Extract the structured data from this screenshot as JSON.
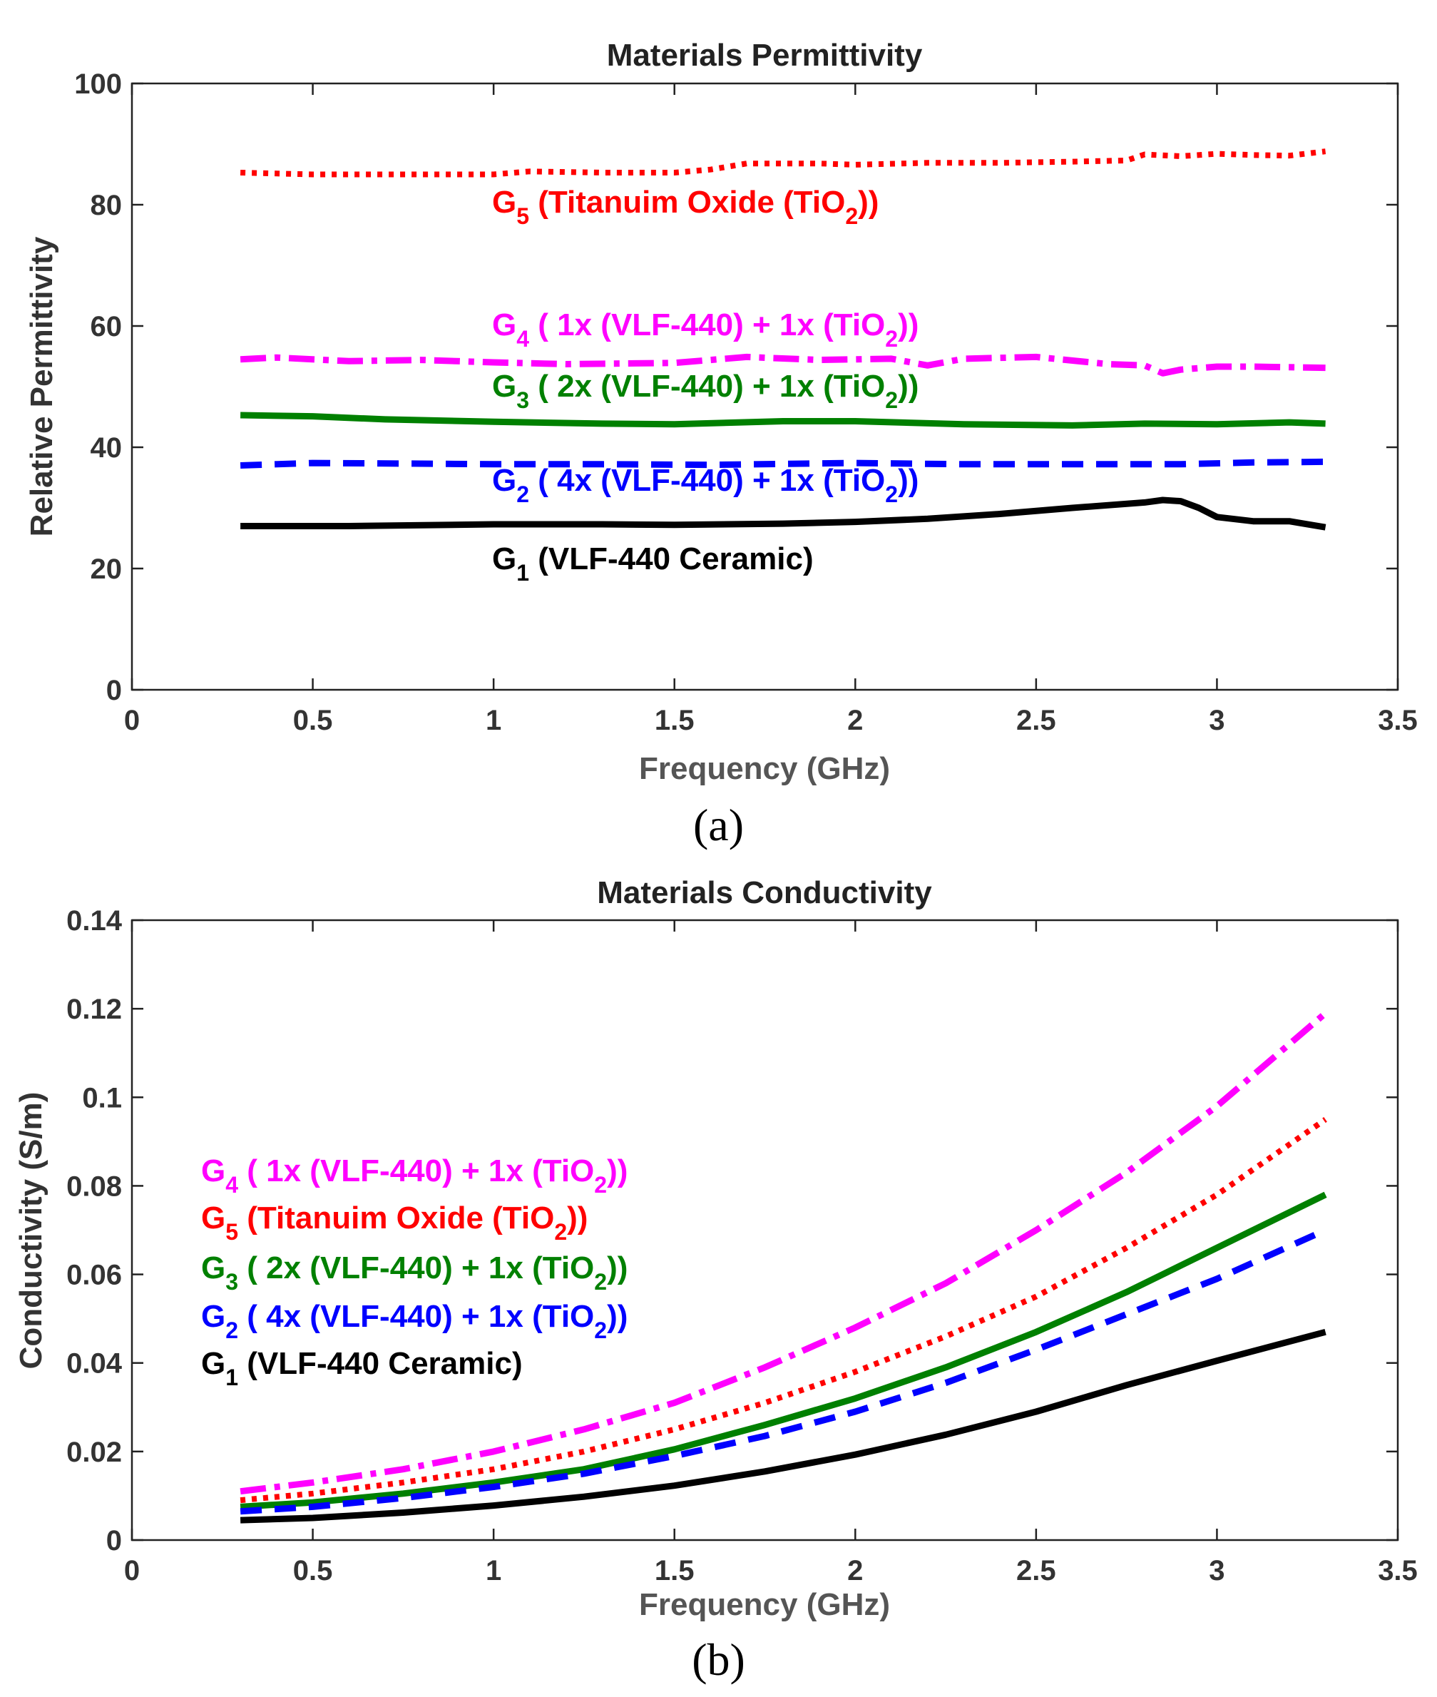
{
  "chart_data": [
    {
      "id": "a",
      "type": "line",
      "title": "Materials Permittivity",
      "xlabel": "Frequency (GHz)",
      "ylabel": "Relative Permittivity",
      "panel_label": "(a)",
      "xlim": [
        0,
        3.5
      ],
      "ylim": [
        0,
        100
      ],
      "xticks": [
        0,
        0.5,
        1,
        1.5,
        2,
        2.5,
        3,
        3.5
      ],
      "yticks": [
        0,
        20,
        40,
        60,
        80,
        100
      ],
      "grid": false,
      "series": [
        {
          "key": "G5",
          "color": "#ff0000",
          "style": "dotted",
          "label": {
            "sym": "G",
            "sub": "5",
            "text": " (Titanuim Oxide (TiO",
            "sub2": "2",
            "tail": "))"
          },
          "x": [
            0.3,
            0.5,
            0.75,
            1.0,
            1.1,
            1.3,
            1.5,
            1.6,
            1.7,
            1.9,
            2.0,
            2.2,
            2.4,
            2.6,
            2.75,
            2.8,
            2.9,
            3.0,
            3.1,
            3.2,
            3.3
          ],
          "y": [
            85.3,
            85.0,
            85.0,
            85.0,
            85.5,
            85.3,
            85.3,
            85.8,
            86.8,
            86.8,
            86.6,
            86.9,
            86.9,
            87.1,
            87.3,
            88.3,
            88.0,
            88.4,
            88.2,
            88.1,
            88.8
          ]
        },
        {
          "key": "G4",
          "color": "#ff00ff",
          "style": "dashdot",
          "label": {
            "sym": "G",
            "sub": "4",
            "text": " ( 1x (VLF-440) + 1x (TiO",
            "sub2": "2",
            "tail": "))"
          },
          "x": [
            0.3,
            0.4,
            0.6,
            0.8,
            1.0,
            1.2,
            1.5,
            1.7,
            1.9,
            2.1,
            2.2,
            2.3,
            2.5,
            2.7,
            2.8,
            2.85,
            2.9,
            3.0,
            3.1,
            3.3
          ],
          "y": [
            54.5,
            54.8,
            54.2,
            54.4,
            54.0,
            53.7,
            53.9,
            54.9,
            54.4,
            54.6,
            53.5,
            54.6,
            54.9,
            53.7,
            53.5,
            52.2,
            52.8,
            53.3,
            53.3,
            53.1
          ]
        },
        {
          "key": "G3",
          "color": "#008000",
          "style": "solid",
          "label": {
            "sym": "G",
            "sub": "3",
            "text": " ( 2x (VLF-440) + 1x (TiO",
            "sub2": "2",
            "tail": "))"
          },
          "x": [
            0.3,
            0.5,
            0.7,
            1.0,
            1.3,
            1.5,
            1.8,
            2.0,
            2.3,
            2.6,
            2.8,
            3.0,
            3.2,
            3.3
          ],
          "y": [
            45.3,
            45.1,
            44.6,
            44.2,
            43.9,
            43.8,
            44.3,
            44.3,
            43.8,
            43.6,
            43.9,
            43.8,
            44.1,
            43.9
          ]
        },
        {
          "key": "G2",
          "color": "#0000ff",
          "style": "dashed",
          "label": {
            "sym": "G",
            "sub": "2",
            "text": " ( 4x (VLF-440) + 1x (TiO",
            "sub2": "2",
            "tail": "))"
          },
          "x": [
            0.3,
            0.5,
            0.8,
            1.0,
            1.3,
            1.6,
            2.0,
            2.3,
            2.6,
            2.9,
            3.1,
            3.3
          ],
          "y": [
            37.0,
            37.4,
            37.3,
            37.2,
            37.2,
            37.1,
            37.4,
            37.2,
            37.2,
            37.2,
            37.5,
            37.6
          ]
        },
        {
          "key": "G1",
          "color": "#000000",
          "style": "solid",
          "label": {
            "sym": "G",
            "sub": "1",
            "text": " (VLF-440 Ceramic)",
            "sub2": "",
            "tail": ""
          },
          "x": [
            0.3,
            0.6,
            1.0,
            1.3,
            1.5,
            1.8,
            2.0,
            2.2,
            2.4,
            2.6,
            2.8,
            2.85,
            2.9,
            2.95,
            3.0,
            3.1,
            3.2,
            3.3
          ],
          "y": [
            27.0,
            27.0,
            27.3,
            27.3,
            27.2,
            27.4,
            27.7,
            28.2,
            29.0,
            30.0,
            30.9,
            31.3,
            31.1,
            30.0,
            28.5,
            27.8,
            27.8,
            26.8
          ]
        }
      ]
    },
    {
      "id": "b",
      "type": "line",
      "title": "Materials Conductivity",
      "xlabel": "Frequency (GHz)",
      "ylabel": "Conductivity (S/m)",
      "panel_label": "(b)",
      "xlim": [
        0,
        3.5
      ],
      "ylim": [
        0,
        0.14
      ],
      "xticks": [
        0,
        0.5,
        1,
        1.5,
        2,
        2.5,
        3,
        3.5
      ],
      "yticks": [
        0,
        0.02,
        0.04,
        0.06,
        0.08,
        0.1,
        0.12,
        0.14
      ],
      "yticklabels": [
        "0",
        "0.02",
        "0.04",
        "0.06",
        "0.08",
        "0.1",
        "0.12",
        "0.14"
      ],
      "grid": false,
      "series": [
        {
          "key": "G4",
          "color": "#ff00ff",
          "style": "dashdot",
          "label": {
            "sym": "G",
            "sub": "4",
            "text": " ( 1x (VLF-440) + 1x (TiO",
            "sub2": "2",
            "tail": "))"
          },
          "x": [
            0.3,
            0.5,
            0.75,
            1.0,
            1.25,
            1.5,
            1.75,
            2.0,
            2.25,
            2.5,
            2.75,
            3.0,
            3.3
          ],
          "y": [
            0.011,
            0.013,
            0.016,
            0.02,
            0.025,
            0.031,
            0.039,
            0.048,
            0.058,
            0.07,
            0.083,
            0.098,
            0.119
          ]
        },
        {
          "key": "G5",
          "color": "#ff0000",
          "style": "dotted",
          "label": {
            "sym": "G",
            "sub": "5",
            "text": " (Titanuim Oxide (TiO",
            "sub2": "2",
            "tail": "))"
          },
          "x": [
            0.3,
            0.5,
            0.75,
            1.0,
            1.25,
            1.5,
            1.75,
            2.0,
            2.25,
            2.5,
            2.75,
            3.0,
            3.3
          ],
          "y": [
            0.009,
            0.0105,
            0.013,
            0.016,
            0.02,
            0.025,
            0.031,
            0.038,
            0.046,
            0.055,
            0.066,
            0.078,
            0.095
          ]
        },
        {
          "key": "G3",
          "color": "#008000",
          "style": "solid",
          "label": {
            "sym": "G",
            "sub": "3",
            "text": " ( 2x (VLF-440) + 1x (TiO",
            "sub2": "2",
            "tail": "))"
          },
          "x": [
            0.3,
            0.5,
            0.75,
            1.0,
            1.25,
            1.5,
            1.75,
            2.0,
            2.25,
            2.5,
            2.75,
            3.0,
            3.3
          ],
          "y": [
            0.0075,
            0.0085,
            0.0105,
            0.013,
            0.016,
            0.0205,
            0.026,
            0.032,
            0.039,
            0.047,
            0.056,
            0.066,
            0.078
          ]
        },
        {
          "key": "G2",
          "color": "#0000ff",
          "style": "dashed",
          "label": {
            "sym": "G",
            "sub": "2",
            "text": " ( 4x (VLF-440) + 1x (TiO",
            "sub2": "2",
            "tail": "))"
          },
          "x": [
            0.3,
            0.5,
            0.75,
            1.0,
            1.25,
            1.5,
            1.75,
            2.0,
            2.25,
            2.5,
            2.75,
            3.0,
            3.3
          ],
          "y": [
            0.0065,
            0.0075,
            0.0095,
            0.012,
            0.015,
            0.019,
            0.0235,
            0.029,
            0.0355,
            0.043,
            0.051,
            0.059,
            0.07
          ]
        },
        {
          "key": "G1",
          "color": "#000000",
          "style": "solid",
          "label": {
            "sym": "G",
            "sub": "1",
            "text": " (VLF-440 Ceramic)",
            "sub2": "",
            "tail": ""
          },
          "x": [
            0.3,
            0.5,
            0.75,
            1.0,
            1.25,
            1.5,
            1.75,
            2.0,
            2.25,
            2.5,
            2.75,
            3.0,
            3.3
          ],
          "y": [
            0.0045,
            0.005,
            0.0062,
            0.0078,
            0.0098,
            0.0123,
            0.0155,
            0.0193,
            0.0238,
            0.029,
            0.035,
            0.0405,
            0.047
          ]
        }
      ]
    }
  ]
}
